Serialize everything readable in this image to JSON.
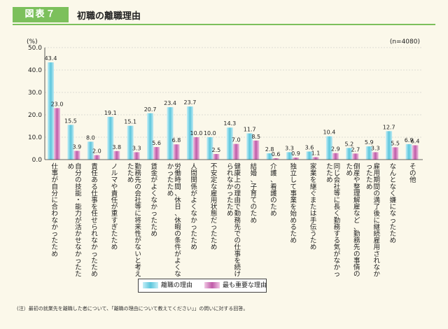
{
  "header": {
    "figure_tag": "図表７",
    "title": "初職の離職理由"
  },
  "chart_data": {
    "type": "bar",
    "y_unit": "(%)",
    "sample_note": "(n=4080)",
    "ylim": [
      0,
      50
    ],
    "yticks": [
      "0.0",
      "10.0",
      "20.0",
      "30.0",
      "40.0",
      "50.0"
    ],
    "categories": [
      "仕事が自分に合わなかったため",
      "自分の技能・能力が活かせなかったため",
      "責任ある仕事を任せられなかったため",
      "ノルマや責任が重すぎたため",
      "勤務先の会社等に将来性がないと考えたため",
      "賃金がよくなかったため",
      "労働時間、休日、休暇の条件がよくなかったため",
      "人間関係がよくなかったため",
      "不安定な雇用状態だったため",
      "健康上の理由で勤務先での仕事を続けられなかったため",
      "結婚、子育てのため",
      "介護、看護のため",
      "独立して事業を始めるため",
      "家業を継ぐまたは手伝うため",
      "同じ会社等に長く勤務する気がなかったため",
      "倒産や整理解雇など、勤務先の事情のため",
      "雇用期間の満了後に継続雇用されなかったため",
      "なんとなく嫌になったため",
      "その他"
    ],
    "series": [
      {
        "name": "離職の理由",
        "values": [
          43.4,
          15.5,
          8.0,
          19.1,
          15.1,
          20.7,
          23.4,
          23.7,
          10.0,
          14.3,
          11.7,
          2.8,
          3.3,
          3.6,
          10.4,
          5.2,
          5.9,
          12.7,
          6.9
        ]
      },
      {
        "name": "最も重要な理由",
        "values": [
          23.0,
          3.9,
          2.0,
          3.8,
          3.3,
          5.6,
          6.8,
          10.0,
          2.5,
          7.0,
          8.5,
          0.6,
          0.9,
          1.1,
          2.9,
          2.7,
          3.3,
          5.5,
          6.4
        ]
      }
    ],
    "colors": [
      "#5cc6dc",
      "#c05aa8"
    ],
    "legend_position": "bottom"
  },
  "note": "(注）最初の就業先を離職した者について、「離職の理由について教えてください」」の問いに対する回答。"
}
